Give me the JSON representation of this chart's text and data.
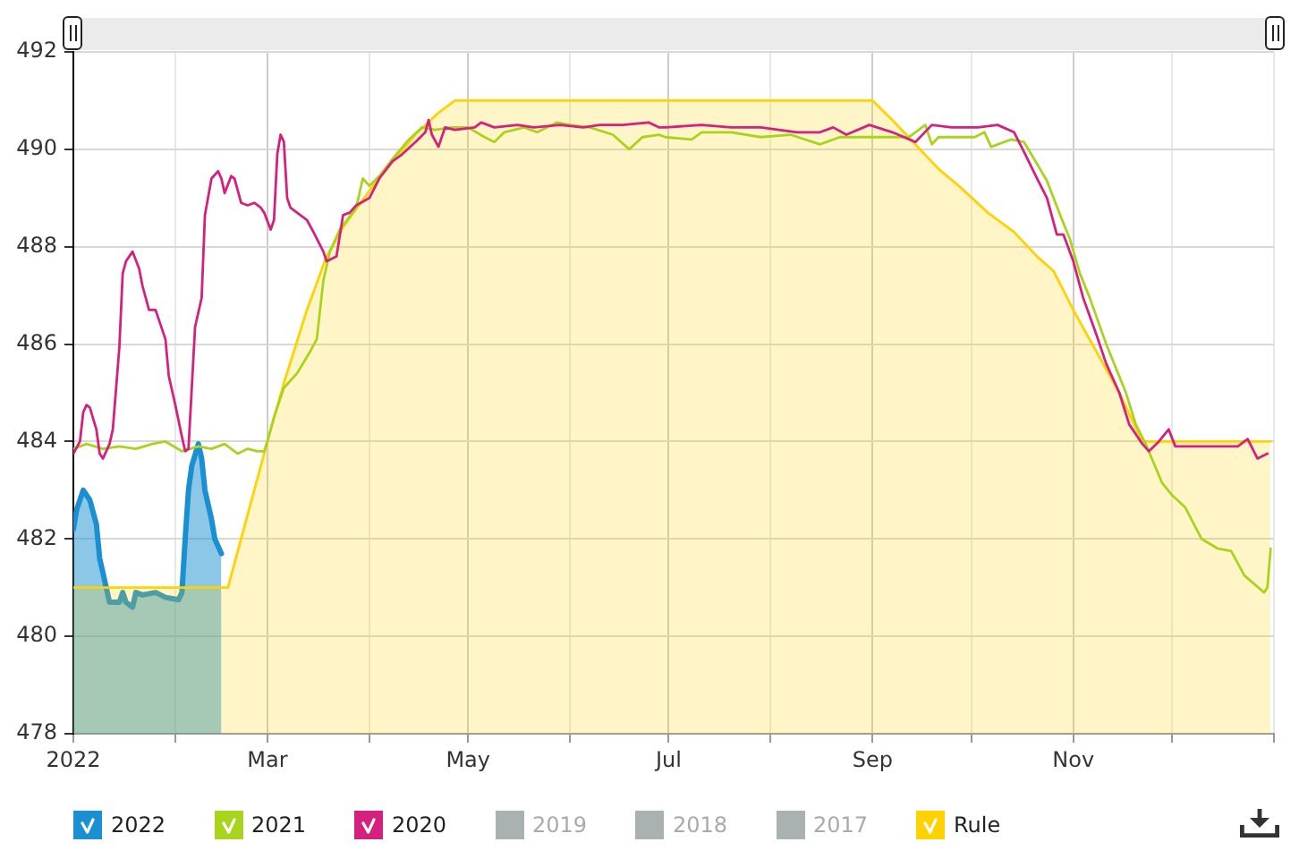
{
  "chart_data": {
    "type": "line",
    "xlim": [
      "2022-01-01",
      "2023-01-01"
    ],
    "xticks": [
      {
        "value": "2022-01-01",
        "label": "2022"
      },
      {
        "value": "2022-02-01",
        "label": null
      },
      {
        "value": "2022-03-01",
        "label": "Mar"
      },
      {
        "value": "2022-04-01",
        "label": null
      },
      {
        "value": "2022-05-01",
        "label": "May"
      },
      {
        "value": "2022-06-01",
        "label": null
      },
      {
        "value": "2022-07-01",
        "label": "Jul"
      },
      {
        "value": "2022-08-01",
        "label": null
      },
      {
        "value": "2022-09-01",
        "label": "Sep"
      },
      {
        "value": "2022-10-01",
        "label": null
      },
      {
        "value": "2022-11-01",
        "label": "Nov"
      },
      {
        "value": "2022-12-01",
        "label": null
      },
      {
        "value": "2023-01-01",
        "label": null
      }
    ],
    "ylim": [
      478,
      492
    ],
    "yticks": [
      478,
      480,
      482,
      484,
      486,
      488,
      490,
      492
    ],
    "grid": true,
    "legend": "bottom",
    "marker": "none",
    "series": [
      {
        "name": "2022",
        "type": "area",
        "color": "#1a8fd2",
        "x": [
          "2022-01-01",
          "2022-01-02",
          "2022-01-04",
          "2022-01-06",
          "2022-01-08",
          "2022-01-09",
          "2022-01-11",
          "2022-01-12",
          "2022-01-15",
          "2022-01-16",
          "2022-01-17",
          "2022-01-19",
          "2022-01-20",
          "2022-01-22",
          "2022-01-26",
          "2022-01-29",
          "2022-02-02",
          "2022-02-03",
          "2022-02-04",
          "2022-02-05",
          "2022-02-06",
          "2022-02-08",
          "2022-02-09",
          "2022-02-10",
          "2022-02-12",
          "2022-02-13",
          "2022-02-15"
        ],
        "values": [
          482.2,
          482.6,
          483.0,
          482.8,
          482.3,
          481.6,
          481.0,
          480.7,
          480.7,
          480.9,
          480.7,
          480.6,
          480.9,
          480.85,
          480.9,
          480.8,
          480.75,
          480.9,
          482.0,
          483.0,
          483.5,
          483.95,
          483.65,
          483.0,
          482.4,
          482.0,
          481.7
        ]
      },
      {
        "name": "2021",
        "color": "#a8d41e",
        "x": [
          "2022-01-01",
          "2022-01-05",
          "2022-01-10",
          "2022-01-15",
          "2022-01-20",
          "2022-01-25",
          "2022-01-29",
          "2022-02-03",
          "2022-02-08",
          "2022-02-12",
          "2022-02-16",
          "2022-02-20",
          "2022-02-23",
          "2022-02-26",
          "2022-02-28",
          "2022-03-01",
          "2022-03-03",
          "2022-03-06",
          "2022-03-10",
          "2022-03-14",
          "2022-03-16",
          "2022-03-18",
          "2022-03-20",
          "2022-03-23",
          "2022-03-28",
          "2022-03-30",
          "2022-04-01",
          "2022-04-04",
          "2022-04-08",
          "2022-04-13",
          "2022-04-17",
          "2022-04-21",
          "2022-04-26",
          "2022-05-01",
          "2022-05-06",
          "2022-05-09",
          "2022-05-12",
          "2022-05-18",
          "2022-05-22",
          "2022-05-28",
          "2022-06-01",
          "2022-06-07",
          "2022-06-14",
          "2022-06-19",
          "2022-06-23",
          "2022-06-28",
          "2022-06-30",
          "2022-07-08",
          "2022-07-11",
          "2022-07-20",
          "2022-07-29",
          "2022-08-07",
          "2022-08-16",
          "2022-08-22",
          "2022-09-03",
          "2022-09-12",
          "2022-09-17",
          "2022-09-19",
          "2022-09-21",
          "2022-10-02",
          "2022-10-05",
          "2022-10-07",
          "2022-10-13",
          "2022-10-17",
          "2022-10-21",
          "2022-10-24",
          "2022-10-28",
          "2022-10-31",
          "2022-11-03",
          "2022-11-06",
          "2022-11-11",
          "2022-11-17",
          "2022-11-20",
          "2022-11-23",
          "2022-11-28",
          "2022-12-01",
          "2022-12-05",
          "2022-12-10",
          "2022-12-15",
          "2022-12-19",
          "2022-12-23",
          "2022-12-29",
          "2022-12-30",
          "2022-12-31"
        ],
        "values": [
          483.85,
          483.95,
          483.85,
          483.9,
          483.85,
          483.95,
          484.0,
          483.8,
          483.9,
          483.85,
          483.95,
          483.75,
          483.85,
          483.8,
          483.8,
          484.0,
          484.5,
          485.1,
          485.4,
          485.85,
          486.1,
          487.3,
          487.9,
          488.35,
          488.8,
          489.4,
          489.25,
          489.45,
          489.8,
          490.2,
          490.45,
          490.4,
          490.45,
          490.45,
          490.25,
          490.15,
          490.35,
          490.45,
          490.35,
          490.55,
          490.5,
          490.45,
          490.3,
          490.0,
          490.25,
          490.3,
          490.25,
          490.2,
          490.35,
          490.35,
          490.25,
          490.3,
          490.1,
          490.25,
          490.25,
          490.25,
          490.5,
          490.1,
          490.25,
          490.25,
          490.35,
          490.05,
          490.2,
          490.15,
          489.7,
          489.35,
          488.65,
          488.15,
          487.45,
          486.95,
          486.0,
          485.0,
          484.35,
          483.95,
          483.15,
          482.9,
          482.65,
          482.0,
          481.8,
          481.75,
          481.25,
          480.9,
          481.0,
          481.8
        ]
      },
      {
        "name": "2020",
        "color": "#d6207e",
        "x": [
          "2022-01-01",
          "2022-01-03",
          "2022-01-04",
          "2022-01-05",
          "2022-01-06",
          "2022-01-08",
          "2022-01-09",
          "2022-01-10",
          "2022-01-12",
          "2022-01-13",
          "2022-01-15",
          "2022-01-16",
          "2022-01-17",
          "2022-01-19",
          "2022-01-21",
          "2022-01-22",
          "2022-01-24",
          "2022-01-26",
          "2022-01-27",
          "2022-01-29",
          "2022-01-30",
          "2022-02-01",
          "2022-02-03",
          "2022-02-04",
          "2022-02-05",
          "2022-02-06",
          "2022-02-07",
          "2022-02-09",
          "2022-02-10",
          "2022-02-12",
          "2022-02-14",
          "2022-02-15",
          "2022-02-16",
          "2022-02-18",
          "2022-02-19",
          "2022-02-21",
          "2022-02-23",
          "2022-02-25",
          "2022-02-27",
          "2022-02-28",
          "2022-03-02",
          "2022-03-03",
          "2022-03-04",
          "2022-03-05",
          "2022-03-06",
          "2022-03-07",
          "2022-03-08",
          "2022-03-10",
          "2022-03-13",
          "2022-03-15",
          "2022-03-18",
          "2022-03-19",
          "2022-03-22",
          "2022-03-24",
          "2022-03-26",
          "2022-03-28",
          "2022-04-01",
          "2022-04-04",
          "2022-04-08",
          "2022-04-11",
          "2022-04-15",
          "2022-04-18",
          "2022-04-19",
          "2022-04-20",
          "2022-04-22",
          "2022-04-24",
          "2022-04-27",
          "2022-05-03",
          "2022-05-05",
          "2022-05-09",
          "2022-05-16",
          "2022-05-21",
          "2022-05-29",
          "2022-06-05",
          "2022-06-10",
          "2022-06-17",
          "2022-06-25",
          "2022-06-28",
          "2022-06-30",
          "2022-07-11",
          "2022-07-20",
          "2022-07-29",
          "2022-08-09",
          "2022-08-16",
          "2022-08-20",
          "2022-08-24",
          "2022-08-31",
          "2022-09-07",
          "2022-09-14",
          "2022-09-19",
          "2022-09-25",
          "2022-10-03",
          "2022-10-09",
          "2022-10-14",
          "2022-10-17",
          "2022-10-21",
          "2022-10-24",
          "2022-10-27",
          "2022-10-29",
          "2022-11-01",
          "2022-11-04",
          "2022-11-08",
          "2022-11-11",
          "2022-11-15",
          "2022-11-18",
          "2022-11-22",
          "2022-11-24",
          "2022-11-27",
          "2022-11-30",
          "2022-12-02",
          "2022-12-08",
          "2022-12-15",
          "2022-12-21",
          "2022-12-24",
          "2022-12-27",
          "2022-12-30"
        ],
        "values": [
          483.75,
          484.0,
          484.6,
          484.75,
          484.7,
          484.25,
          483.75,
          483.65,
          483.95,
          484.25,
          485.95,
          487.45,
          487.7,
          487.9,
          487.55,
          487.2,
          486.7,
          486.7,
          486.5,
          486.1,
          485.35,
          484.75,
          484.1,
          483.8,
          483.85,
          485.1,
          486.35,
          486.95,
          488.65,
          489.4,
          489.55,
          489.4,
          489.1,
          489.45,
          489.4,
          488.9,
          488.85,
          488.9,
          488.8,
          488.7,
          488.35,
          488.55,
          489.9,
          490.3,
          490.15,
          489.0,
          488.8,
          488.7,
          488.55,
          488.3,
          487.9,
          487.7,
          487.8,
          488.65,
          488.7,
          488.85,
          489.0,
          489.4,
          489.75,
          489.9,
          490.15,
          490.35,
          490.6,
          490.3,
          490.05,
          490.45,
          490.4,
          490.45,
          490.55,
          490.45,
          490.5,
          490.45,
          490.5,
          490.45,
          490.5,
          490.5,
          490.55,
          490.45,
          490.45,
          490.5,
          490.45,
          490.45,
          490.35,
          490.35,
          490.45,
          490.3,
          490.5,
          490.35,
          490.15,
          490.5,
          490.45,
          490.45,
          490.5,
          490.35,
          489.95,
          489.4,
          489.0,
          488.25,
          488.25,
          487.7,
          486.95,
          486.2,
          485.6,
          485.0,
          484.35,
          483.95,
          483.8,
          484.0,
          484.25,
          483.9,
          483.9,
          483.9,
          483.9,
          484.05,
          483.65,
          483.75
        ]
      },
      {
        "name": "2019",
        "color": "#a9b1b1"
      },
      {
        "name": "2018",
        "color": "#a9b1b1"
      },
      {
        "name": "2017",
        "color": "#a9b1b1"
      },
      {
        "name": "Rule",
        "type": "area",
        "color": "#ffd200",
        "x": [
          "2022-01-01",
          "2022-02-17",
          "2022-03-01",
          "2022-03-06",
          "2022-03-13",
          "2022-03-19",
          "2022-03-24",
          "2022-04-01",
          "2022-04-08",
          "2022-04-15",
          "2022-04-22",
          "2022-04-27",
          "2022-09-01",
          "2022-09-07",
          "2022-09-14",
          "2022-09-21",
          "2022-09-28",
          "2022-10-06",
          "2022-10-14",
          "2022-10-21",
          "2022-10-26",
          "2022-11-01",
          "2022-11-08",
          "2022-11-15",
          "2022-11-22",
          "2022-12-31"
        ],
        "values": [
          481.0,
          481.0,
          484.0,
          485.2,
          486.7,
          487.8,
          488.4,
          489.15,
          489.75,
          490.3,
          490.75,
          491.0,
          491.0,
          490.6,
          490.1,
          489.6,
          489.2,
          488.7,
          488.3,
          487.8,
          487.5,
          486.7,
          485.85,
          485.0,
          484.0,
          484.0
        ]
      }
    ]
  }
}
